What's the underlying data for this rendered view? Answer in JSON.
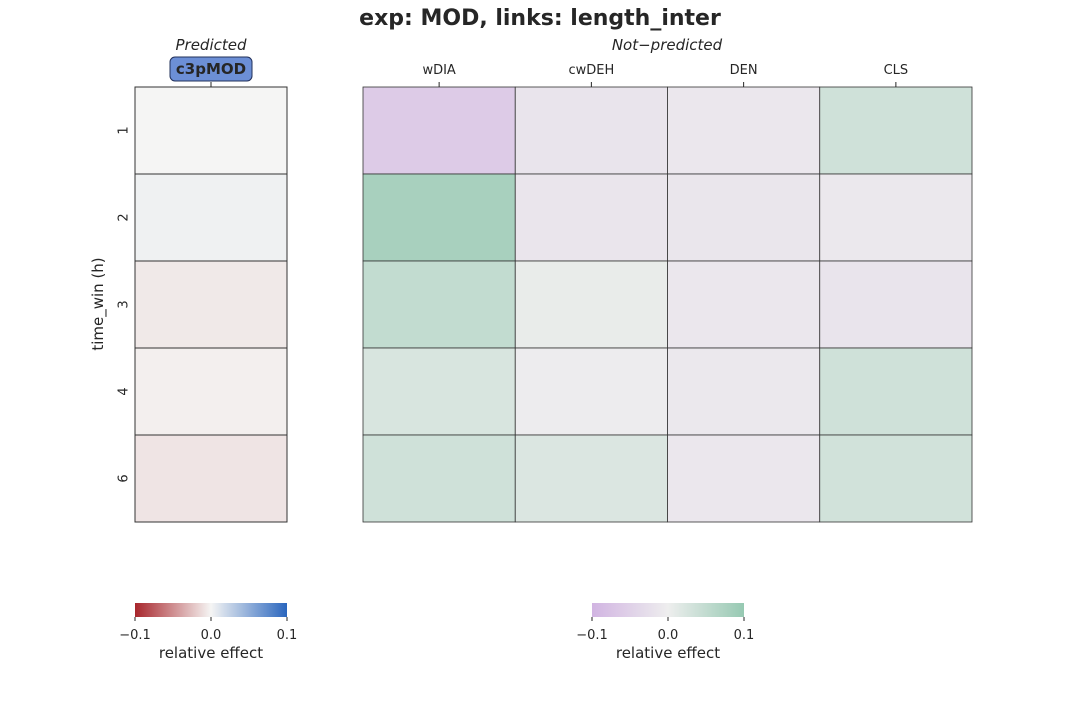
{
  "chart_data": {
    "type": "heatmap",
    "title": "exp: MOD, links: length_inter",
    "ylabel": "time_win (h)",
    "rows": [
      "1",
      "2",
      "3",
      "4",
      "6"
    ],
    "panels": [
      {
        "subtitle": "Predicted",
        "columns": [
          "c3pMOD"
        ],
        "highlighted_column": "c3pMOD",
        "colormap": "red-white-blue",
        "values": [
          [
            0.0
          ],
          [
            0.003
          ],
          [
            -0.006
          ],
          [
            -0.003
          ],
          [
            -0.008
          ]
        ]
      },
      {
        "subtitle": "Not−predicted",
        "columns": [
          "wDIA",
          "cwDEH",
          "DEN",
          "CLS"
        ],
        "colormap": "purple-white-green",
        "values": [
          [
            -0.06,
            -0.018,
            -0.012,
            0.035
          ],
          [
            0.08,
            -0.015,
            -0.013,
            -0.01
          ],
          [
            0.05,
            0.006,
            -0.012,
            -0.018
          ],
          [
            0.025,
            -0.004,
            -0.01,
            0.035
          ],
          [
            0.035,
            0.022,
            -0.012,
            0.033
          ]
        ]
      }
    ],
    "colorbars": [
      {
        "label": "relative effect",
        "ticks": [
          "−0.1",
          "0.0",
          "0.1"
        ],
        "range": [
          -0.1,
          0.1
        ],
        "colormap": "red-white-blue"
      },
      {
        "label": "relative effect",
        "ticks": [
          "−0.1",
          "0.0",
          "0.1"
        ],
        "range": [
          -0.1,
          0.1
        ],
        "colormap": "purple-white-green"
      }
    ],
    "colors": {
      "rwb_low": "#a8262c",
      "rwb_mid": "#f5f5f4",
      "rwb_high": "#2a66be",
      "pg_low": "#d1b4e2",
      "pg_mid": "#eeeeee",
      "pg_high": "#96c9b2",
      "badge_fill": "#6c8fd6",
      "badge_border": "#22305a"
    }
  }
}
